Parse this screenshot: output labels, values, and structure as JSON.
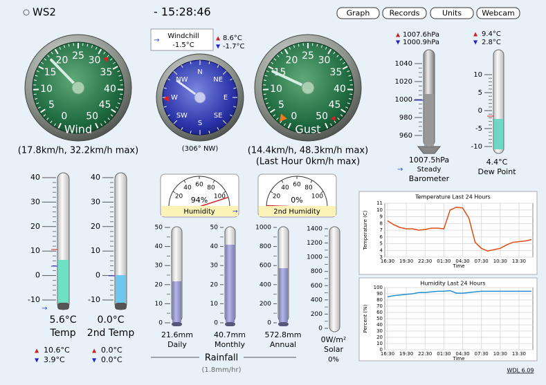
{
  "station": "WS2",
  "time": "- 15:28:46",
  "buttons": [
    "Graph",
    "Records",
    "Units",
    "Webcam"
  ],
  "wind": {
    "ticks": [
      0,
      5,
      10,
      15,
      20,
      25,
      30,
      35,
      40,
      45,
      50
    ],
    "label": "Wind",
    "reading": "(17.8km/h, 32.2km/h max)"
  },
  "windchill": {
    "label": "Windchill",
    "value": "-1.5°C",
    "high": "8.6°C",
    "low": "-1.7°C"
  },
  "direction": {
    "points": [
      "N",
      "NE",
      "E",
      "SE",
      "S",
      "SW",
      "W",
      "NW"
    ],
    "reading": "(306° NW)"
  },
  "gust": {
    "ticks": [
      0,
      5,
      10,
      15,
      20,
      25,
      30,
      35,
      40,
      45,
      50
    ],
    "label": "Gust",
    "reading": "(14.4km/h, 48.3km/h max)",
    "last_hour": "(Last Hour 0km/h max)"
  },
  "barometer": {
    "high": "1007.6hPa",
    "low": "1000.9hPa",
    "ticks": [
      1040,
      1020,
      1000,
      980,
      960
    ],
    "value": "1007.5hPa",
    "trend": "Steady",
    "label": "Barometer"
  },
  "dew_point": {
    "high": "9.4°C",
    "low": "2.8°C",
    "ticks": [
      10,
      5,
      0,
      -5,
      -10
    ],
    "value": "4.4°C",
    "label": "Dew Point"
  },
  "temp": {
    "ticks": [
      40,
      30,
      20,
      10,
      0,
      -10
    ],
    "value": "5.6°C",
    "label": "Temp",
    "high": "10.6°C",
    "low": "3.9°C"
  },
  "temp2": {
    "ticks": [
      40,
      30,
      20,
      10,
      0,
      -10
    ],
    "value": "0.0°C",
    "label": "2nd Temp",
    "high": "0.0°C",
    "low": "0.0°C"
  },
  "humidity": {
    "ticks": [
      20,
      40,
      60,
      80,
      100
    ],
    "value": "94%",
    "label": "Humidity"
  },
  "humidity2": {
    "ticks": [
      20,
      40,
      60,
      80,
      100
    ],
    "value": "0%",
    "label": "2nd Humidity"
  },
  "rain": {
    "daily": {
      "ticks": [
        50,
        40,
        30,
        20,
        10,
        0
      ],
      "value": "21.6mm",
      "label": "Daily"
    },
    "monthly": {
      "ticks": [
        50,
        40,
        30,
        20,
        10,
        0
      ],
      "value": "40.7mm",
      "label": "Monthly"
    },
    "annual": {
      "ticks": [
        1000,
        800,
        600,
        400,
        200,
        0
      ],
      "value": "572.8mm",
      "label": "Annual"
    },
    "label": "Rainfall",
    "rate": "(1.8mm/hr)"
  },
  "solar": {
    "ticks": [
      1400,
      1200,
      1000,
      800,
      600,
      400,
      200,
      0
    ],
    "value": "0W/m²",
    "label": "Solar",
    "percent": "0%"
  },
  "temp_chart": {
    "type": "line",
    "title": "Temperature Last 24 Hours",
    "y_label": "Temperature (C)",
    "x_label": "Time",
    "xticks": [
      "16:30",
      "19:30",
      "22:30",
      "01:30",
      "04:30",
      "07:30",
      "10:30",
      "13:30"
    ],
    "ylim": [
      3,
      11
    ],
    "yticks": [
      3,
      4,
      5,
      6,
      7,
      8,
      9,
      10,
      11
    ],
    "color": "#e04a10",
    "values": [
      8.4,
      7.8,
      7.4,
      7.2,
      7.2,
      7.0,
      7.1,
      7.3,
      7.3,
      7.2,
      10.0,
      10.4,
      10.3,
      8.8,
      5.2,
      4.3,
      3.9,
      4.1,
      4.3,
      4.8,
      5.2,
      5.3,
      5.4,
      5.6
    ]
  },
  "humidity_chart": {
    "type": "line",
    "title": "Humidity Last 24 Hours",
    "y_label": "Percent (%)",
    "x_label": "Time",
    "xticks": [
      "16:30",
      "19:30",
      "22:30",
      "01:30",
      "04:30",
      "07:30",
      "10:30",
      "13:30"
    ],
    "ylim": [
      0,
      100
    ],
    "yticks": [
      0,
      10,
      20,
      30,
      40,
      50,
      60,
      70,
      80,
      90,
      100
    ],
    "color": "#1f8fd0",
    "values": [
      85,
      87,
      88,
      89,
      90,
      92,
      92,
      93,
      94,
      94,
      95,
      91,
      91,
      92,
      93,
      94,
      94,
      94,
      94,
      94,
      94,
      94,
      94,
      94
    ]
  },
  "version": "WDL 6.09"
}
